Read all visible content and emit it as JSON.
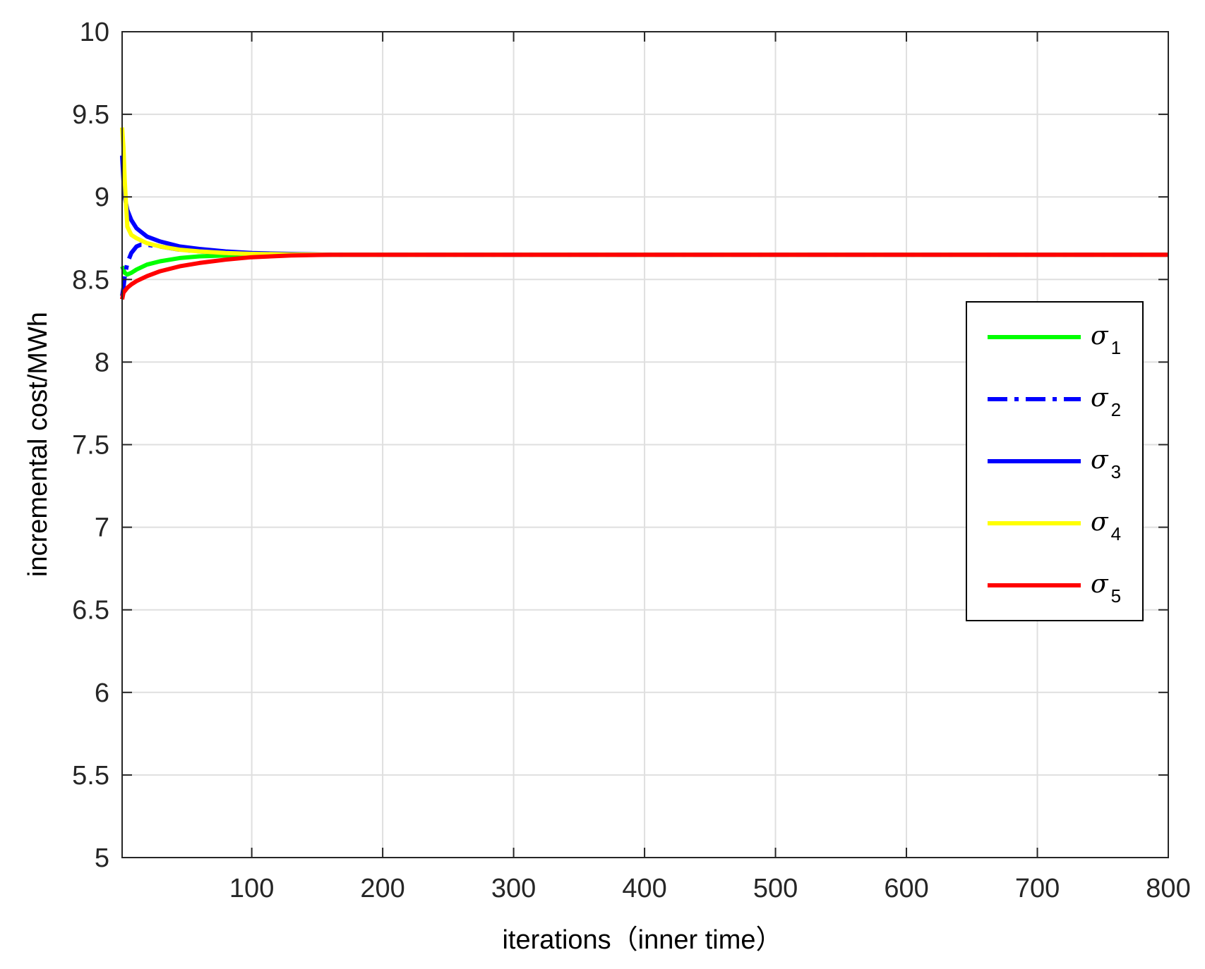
{
  "chart_data": {
    "type": "line",
    "title": "",
    "xlabel": "iterations（inner time）",
    "ylabel": "incremental cost/MWh",
    "xlim": [
      1,
      800
    ],
    "ylim": [
      5,
      10
    ],
    "xticks": [
      100,
      200,
      300,
      400,
      500,
      600,
      700,
      800
    ],
    "yticks": [
      5,
      5.5,
      6,
      6.5,
      7,
      7.5,
      8,
      8.5,
      9,
      9.5,
      10
    ],
    "grid": true,
    "legend_position": "right",
    "series": [
      {
        "name": "σ",
        "subscript": "1",
        "color": "#00ff00",
        "style": "solid",
        "x": [
          1,
          2,
          3,
          5,
          8,
          12,
          20,
          30,
          45,
          60,
          80,
          100,
          130,
          160,
          800
        ],
        "y": [
          8.58,
          8.56,
          8.54,
          8.53,
          8.54,
          8.56,
          8.59,
          8.61,
          8.63,
          8.64,
          8.645,
          8.648,
          8.65,
          8.65,
          8.65
        ]
      },
      {
        "name": "σ",
        "subscript": "2",
        "color": "#0000ff",
        "style": "dashdot",
        "x": [
          1,
          2,
          3,
          5,
          8,
          12,
          15,
          20,
          30,
          45,
          60,
          80,
          100,
          130,
          160,
          800
        ],
        "y": [
          8.4,
          8.45,
          8.52,
          8.6,
          8.66,
          8.7,
          8.71,
          8.71,
          8.7,
          8.68,
          8.67,
          8.66,
          8.655,
          8.652,
          8.65,
          8.65
        ]
      },
      {
        "name": "σ",
        "subscript": "3",
        "color": "#0000ff",
        "style": "solid",
        "x": [
          1,
          2,
          3,
          5,
          8,
          12,
          20,
          30,
          45,
          60,
          80,
          100,
          130,
          160,
          800
        ],
        "y": [
          9.25,
          9.1,
          9.0,
          8.92,
          8.86,
          8.81,
          8.76,
          8.73,
          8.7,
          8.685,
          8.67,
          8.66,
          8.655,
          8.65,
          8.65
        ]
      },
      {
        "name": "σ",
        "subscript": "4",
        "color": "#ffff00",
        "style": "solid",
        "x": [
          1,
          2,
          3,
          4,
          5,
          8,
          12,
          20,
          30,
          45,
          60,
          80,
          100,
          130,
          160,
          800
        ],
        "y": [
          9.42,
          9.3,
          9.1,
          8.95,
          8.82,
          8.77,
          8.75,
          8.72,
          8.7,
          8.68,
          8.67,
          8.66,
          8.655,
          8.652,
          8.65,
          8.65
        ]
      },
      {
        "name": "σ",
        "subscript": "5",
        "color": "#ff0000",
        "style": "solid",
        "x": [
          1,
          2,
          3,
          5,
          8,
          12,
          20,
          30,
          45,
          60,
          80,
          100,
          130,
          160,
          800
        ],
        "y": [
          8.38,
          8.42,
          8.43,
          8.45,
          8.47,
          8.49,
          8.52,
          8.55,
          8.58,
          8.6,
          8.62,
          8.635,
          8.645,
          8.65,
          8.65
        ]
      }
    ]
  }
}
